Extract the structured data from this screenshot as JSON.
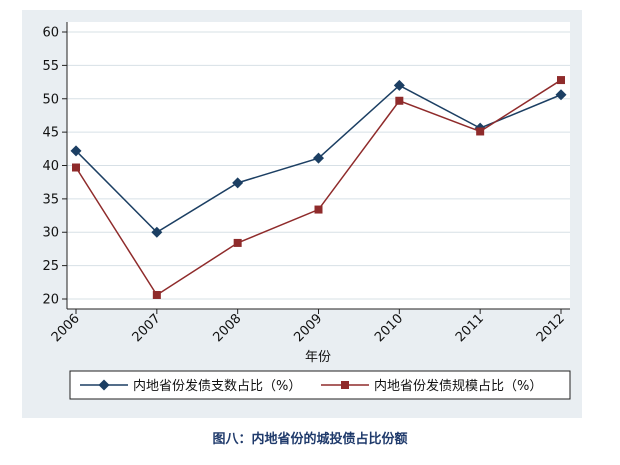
{
  "chart_data": {
    "type": "line",
    "x": [
      "2006",
      "2007",
      "2008",
      "2009",
      "2010",
      "2011",
      "2012"
    ],
    "series": [
      {
        "name": "内地省份发债支数占比（%）",
        "values": [
          42.2,
          30.0,
          37.4,
          41.1,
          52.0,
          45.6,
          50.6
        ],
        "color": "#1c3f63",
        "marker": "diamond"
      },
      {
        "name": "内地省份发债规模占比（%）",
        "values": [
          39.7,
          20.6,
          28.4,
          33.4,
          49.7,
          45.1,
          52.8
        ],
        "color": "#8f2b2b",
        "marker": "square"
      }
    ],
    "yticks": [
      20,
      25,
      30,
      35,
      40,
      45,
      50,
      55,
      60
    ],
    "ylim": [
      18.5,
      61.5
    ],
    "xlabel": "年份",
    "ylabel": "",
    "grid": "y",
    "legend_position": "bottom",
    "panel_background": "#e9eef2",
    "plot_background": "#ffffff"
  },
  "caption": "图八：内地省份的城投债占比份额"
}
